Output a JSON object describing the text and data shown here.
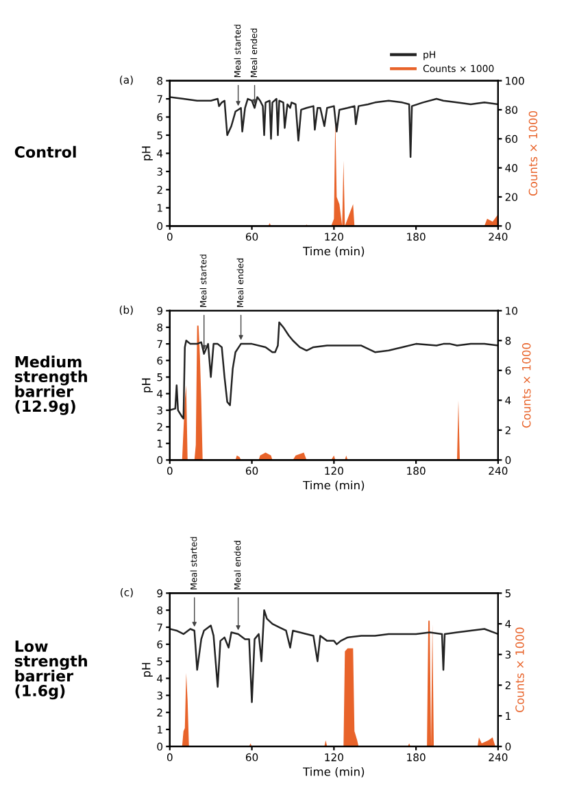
{
  "chart_data": [
    {
      "type": "line",
      "title": "Control",
      "xlabel": "Time (min)",
      "ylabel": "pH",
      "y2label": "Counts × 1000",
      "xlim": [
        0,
        240
      ],
      "xticks": [
        0,
        60,
        120,
        180,
        240
      ],
      "ylim": [
        0,
        8
      ],
      "yticks": [
        0,
        1,
        2,
        3,
        4,
        5,
        6,
        7,
        8
      ],
      "y2lim": [
        0,
        100
      ],
      "y2ticks": [
        0,
        20,
        40,
        60,
        80,
        100
      ],
      "legend": "top right",
      "grid": false,
      "marker": "none",
      "line_style": "solid",
      "annotations": [
        "(a)",
        {
          "text": "Meal started",
          "x": 50,
          "y": 6.4
        },
        {
          "text": "Meal ended",
          "x": 62,
          "y": 6.5
        }
      ],
      "series": [
        {
          "name": "pH",
          "axis": "y",
          "color": "#222222",
          "x": [
            0,
            10,
            20,
            30,
            35,
            36,
            38,
            40,
            42,
            45,
            48,
            50,
            52,
            53,
            55,
            57,
            60,
            62,
            64,
            66,
            68,
            69,
            70,
            73,
            74,
            75,
            78,
            79,
            80,
            83,
            84,
            86,
            88,
            89,
            92,
            94,
            96,
            100,
            105,
            106,
            108,
            110,
            113,
            115,
            120,
            122,
            124,
            130,
            135,
            136,
            138,
            145,
            150,
            160,
            170,
            175,
            176,
            177,
            185,
            195,
            200,
            210,
            220,
            230,
            240
          ],
          "values": [
            7.1,
            7.0,
            6.9,
            6.9,
            7.0,
            6.6,
            6.8,
            6.9,
            5.0,
            5.5,
            6.3,
            6.4,
            6.5,
            5.2,
            6.5,
            7.0,
            6.9,
            6.5,
            7.1,
            6.9,
            6.6,
            5.0,
            6.8,
            6.9,
            4.8,
            6.8,
            7.0,
            5.0,
            6.9,
            6.8,
            5.4,
            6.7,
            6.5,
            6.8,
            6.7,
            4.7,
            6.4,
            6.5,
            6.6,
            5.3,
            6.5,
            6.5,
            5.5,
            6.5,
            6.6,
            5.2,
            6.4,
            6.5,
            6.6,
            5.6,
            6.6,
            6.7,
            6.8,
            6.9,
            6.8,
            6.7,
            3.8,
            6.6,
            6.8,
            7.0,
            6.9,
            6.8,
            6.7,
            6.8,
            6.7
          ]
        },
        {
          "name": "Counts × 1000",
          "type": "area",
          "axis": "y2",
          "color": "#e8632a",
          "x": [
            0,
            72,
            73,
            74,
            99,
            100,
            101,
            118,
            120,
            121,
            122,
            124,
            126,
            127,
            128,
            130,
            134,
            135,
            230,
            232,
            236,
            240
          ],
          "values": [
            0,
            0,
            2,
            0,
            0,
            1,
            0,
            0,
            5,
            75,
            20,
            15,
            0,
            45,
            0,
            5,
            15,
            0,
            0,
            5,
            3,
            8
          ]
        }
      ]
    },
    {
      "type": "line",
      "title": "Medium strength barrier (12.9g)",
      "xlabel": "Time (min)",
      "ylabel": "pH",
      "y2label": "Counts × 1000",
      "xlim": [
        0,
        240
      ],
      "xticks": [
        0,
        60,
        120,
        180,
        240
      ],
      "ylim": [
        0,
        9
      ],
      "yticks": [
        0,
        1,
        2,
        3,
        4,
        5,
        6,
        7,
        8,
        9
      ],
      "y2lim": [
        0,
        10
      ],
      "y2ticks": [
        0,
        2,
        4,
        6,
        8,
        10
      ],
      "grid": false,
      "marker": "none",
      "line_style": "solid",
      "annotations": [
        "(b)",
        {
          "text": "Meal started",
          "x": 25,
          "y": 6.4
        },
        {
          "text": "Meal ended",
          "x": 52,
          "y": 7.0
        }
      ],
      "series": [
        {
          "axis": "y",
          "color": "#222222",
          "x": [
            0,
            4,
            5,
            6,
            9,
            10,
            11,
            12,
            15,
            20,
            23,
            25,
            28,
            30,
            32,
            35,
            38,
            40,
            42,
            44,
            46,
            48,
            52,
            60,
            70,
            75,
            77,
            79,
            80,
            83,
            87,
            90,
            95,
            100,
            105,
            115,
            125,
            140,
            150,
            160,
            170,
            180,
            195,
            200,
            205,
            210,
            220,
            230,
            240
          ],
          "values": [
            3.0,
            3.1,
            4.5,
            3.0,
            2.6,
            2.5,
            6.8,
            7.2,
            7.0,
            7.0,
            7.1,
            6.4,
            7.0,
            5.0,
            7.0,
            7.0,
            6.8,
            5.0,
            3.5,
            3.3,
            5.5,
            6.5,
            7.0,
            7.0,
            6.8,
            6.5,
            6.5,
            6.9,
            8.3,
            8.0,
            7.5,
            7.2,
            6.8,
            6.6,
            6.8,
            6.9,
            6.9,
            6.9,
            6.5,
            6.6,
            6.8,
            7.0,
            6.9,
            7.0,
            7.0,
            6.9,
            7.0,
            7.0,
            6.9
          ]
        },
        {
          "type": "area",
          "axis": "y2",
          "color": "#e8632a",
          "x": [
            0,
            9,
            10,
            11,
            12,
            13,
            18,
            19,
            20,
            21,
            22,
            23,
            24,
            48,
            49,
            51,
            52,
            65,
            66,
            70,
            74,
            75,
            90,
            92,
            98,
            100,
            118,
            120,
            121,
            128,
            129,
            130,
            210,
            211,
            212,
            240
          ],
          "values": [
            0,
            0,
            2,
            4,
            5,
            0,
            0,
            1,
            9,
            9,
            7,
            4,
            0,
            0,
            0.3,
            0.2,
            0,
            0,
            0.3,
            0.5,
            0.3,
            0,
            0,
            0.3,
            0.5,
            0,
            0,
            0.3,
            0,
            0,
            0.3,
            0,
            0,
            4,
            0,
            0
          ]
        }
      ]
    },
    {
      "type": "line",
      "title": "Low strength barrier (1.6g)",
      "xlabel": "Time (min)",
      "ylabel": "pH",
      "y2label": "Counts × 1000",
      "xlim": [
        0,
        240
      ],
      "xticks": [
        0,
        60,
        120,
        180,
        240
      ],
      "ylim": [
        0,
        9
      ],
      "yticks": [
        0,
        1,
        2,
        3,
        4,
        5,
        6,
        7,
        8,
        9
      ],
      "y2lim": [
        0,
        5
      ],
      "y2ticks": [
        0,
        1,
        2,
        3,
        4,
        5
      ],
      "grid": false,
      "marker": "none",
      "line_style": "solid",
      "annotations": [
        "(c)",
        {
          "text": "Meal started",
          "x": 18,
          "y": 6.8
        },
        {
          "text": "Meal ended",
          "x": 50,
          "y": 6.6
        }
      ],
      "series": [
        {
          "axis": "y",
          "color": "#222222",
          "x": [
            0,
            5,
            10,
            15,
            18,
            20,
            23,
            25,
            30,
            32,
            35,
            37,
            40,
            43,
            45,
            50,
            55,
            58,
            60,
            62,
            65,
            67,
            69,
            71,
            75,
            80,
            85,
            88,
            90,
            95,
            100,
            105,
            108,
            110,
            115,
            120,
            122,
            125,
            130,
            140,
            150,
            160,
            170,
            180,
            190,
            199,
            200,
            201,
            210,
            220,
            230,
            240
          ],
          "values": [
            6.9,
            6.8,
            6.6,
            6.9,
            6.8,
            4.5,
            6.3,
            6.8,
            7.1,
            6.5,
            3.5,
            6.2,
            6.4,
            5.8,
            6.7,
            6.6,
            6.3,
            6.3,
            2.6,
            6.3,
            6.6,
            5.0,
            8.0,
            7.5,
            7.2,
            7.0,
            6.8,
            5.8,
            6.8,
            6.7,
            6.6,
            6.5,
            5.0,
            6.5,
            6.2,
            6.2,
            6.0,
            6.2,
            6.4,
            6.5,
            6.5,
            6.6,
            6.6,
            6.6,
            6.7,
            6.6,
            4.5,
            6.6,
            6.7,
            6.8,
            6.9,
            6.6
          ]
        },
        {
          "type": "area",
          "axis": "y2",
          "color": "#e8632a",
          "x": [
            0,
            9,
            10,
            11,
            12,
            13,
            14,
            58,
            59,
            60,
            113,
            114,
            115,
            127,
            128,
            130,
            134,
            135,
            137,
            138,
            174,
            175,
            176,
            188,
            189,
            190,
            191,
            192,
            193,
            225,
            226,
            228,
            233,
            236,
            238,
            240
          ],
          "values": [
            0,
            0,
            0.5,
            0.6,
            2.4,
            1.5,
            0,
            0,
            0.1,
            0,
            0,
            0.2,
            0,
            0,
            3.1,
            3.2,
            3.2,
            0.5,
            0.2,
            0,
            0,
            0.1,
            0,
            0,
            4.1,
            4.1,
            0,
            4.0,
            0,
            0,
            0.3,
            0.1,
            0.2,
            0.3,
            0,
            0
          ]
        }
      ]
    }
  ]
}
